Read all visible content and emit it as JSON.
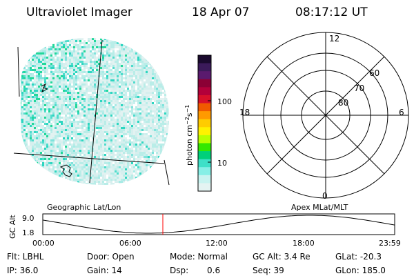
{
  "header": {
    "title": "Ultraviolet Imager",
    "date": "18 Apr 07",
    "time": "08:17:12 UT"
  },
  "colorbar": {
    "label_html": "photon cm",
    "ticks": [
      "100",
      "10"
    ],
    "colors_top_to_bottom": [
      "#1a0a2e",
      "#3b1a5a",
      "#5a1a6e",
      "#8b0035",
      "#b3003a",
      "#d8102a",
      "#f05a00",
      "#ff9a00",
      "#ffcc00",
      "#fff200",
      "#b8ff00",
      "#33e800",
      "#00d07a",
      "#3ee0c8",
      "#86efe6",
      "#c8f3f0",
      "#e4f3f2"
    ]
  },
  "image_panel": {
    "name": "uv-auroral-image",
    "coordinates_label": "Geographic Lat/Lon"
  },
  "polar_grid": {
    "mlt_labels": [
      "12",
      "18",
      "6",
      "0"
    ],
    "lat_labels": [
      "60",
      "70",
      "80"
    ],
    "coordinates_label": "Apex MLat/MLT"
  },
  "altitude_plot": {
    "ylabel": "GC Alt",
    "ymax_label": "9.0",
    "ymin_label": "1.8",
    "x_ticks": [
      "00:00",
      "06:00",
      "12:00",
      "18:00",
      "23:59"
    ],
    "marker_color": "#ff0000"
  },
  "info": {
    "flt": "Flt: LBHL",
    "door": "Door: Open",
    "mode": "Mode: Normal",
    "gc_alt": "GC Alt: 3.4 Re",
    "glat": "GLat: -20.3",
    "ip": "IP: 36.0",
    "gain": "Gain: 14",
    "dsp_label": "Dsp:",
    "dsp_value": "0.6",
    "seq": "Seq: 39",
    "glon": "GLon: 185.0"
  }
}
